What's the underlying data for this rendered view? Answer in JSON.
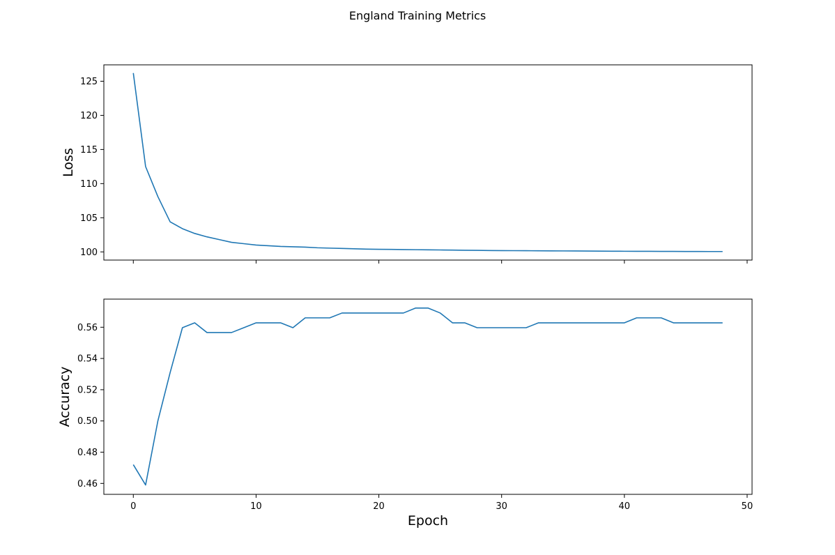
{
  "figure_title": "England Training Metrics",
  "x_axis_label": "Epoch",
  "line_color": "#1f77b4",
  "x_ticks": [
    0,
    10,
    20,
    30,
    40,
    50
  ],
  "chart_data": [
    {
      "type": "line",
      "ylabel": "Loss",
      "xlim": [
        -2.4,
        50.4
      ],
      "ylim": [
        98.8,
        127.4
      ],
      "y_ticks": [
        100,
        105,
        110,
        115,
        120,
        125
      ],
      "x_tick_labels_shown": false,
      "grid": false,
      "series": [
        {
          "x": [
            0,
            1,
            2,
            3,
            4,
            5,
            6,
            7,
            8,
            9,
            10,
            11,
            12,
            13,
            14,
            15,
            16,
            17,
            18,
            19,
            20,
            21,
            22,
            23,
            24,
            25,
            26,
            27,
            28,
            29,
            30,
            31,
            32,
            33,
            34,
            35,
            36,
            37,
            38,
            39,
            40,
            41,
            42,
            43,
            44,
            45,
            46,
            47,
            48
          ],
          "values": [
            126.2,
            112.5,
            108.1,
            104.4,
            103.4,
            102.7,
            102.2,
            101.8,
            101.4,
            101.2,
            101.0,
            100.9,
            100.8,
            100.75,
            100.7,
            100.6,
            100.55,
            100.5,
            100.45,
            100.4,
            100.38,
            100.36,
            100.34,
            100.32,
            100.3,
            100.28,
            100.26,
            100.24,
            100.22,
            100.2,
            100.19,
            100.18,
            100.17,
            100.16,
            100.15,
            100.14,
            100.13,
            100.12,
            100.11,
            100.1,
            100.09,
            100.08,
            100.08,
            100.07,
            100.07,
            100.06,
            100.06,
            100.05,
            100.05
          ]
        }
      ]
    },
    {
      "type": "line",
      "ylabel": "Accuracy",
      "xlim": [
        -2.4,
        50.4
      ],
      "ylim": [
        0.453,
        0.578
      ],
      "y_ticks": [
        0.46,
        0.48,
        0.5,
        0.52,
        0.54,
        0.56
      ],
      "x_tick_labels_shown": true,
      "grid": false,
      "series": [
        {
          "x": [
            0,
            1,
            2,
            3,
            4,
            5,
            6,
            7,
            8,
            9,
            10,
            11,
            12,
            13,
            14,
            15,
            16,
            17,
            18,
            19,
            20,
            21,
            22,
            23,
            24,
            25,
            26,
            27,
            28,
            29,
            30,
            31,
            32,
            33,
            34,
            35,
            36,
            37,
            38,
            39,
            40,
            41,
            42,
            43,
            44,
            45,
            46,
            47,
            48
          ],
          "values": [
            0.472,
            0.459,
            0.5,
            0.531,
            0.5597,
            0.5628,
            0.5566,
            0.5566,
            0.5566,
            0.5597,
            0.5628,
            0.5628,
            0.5628,
            0.5597,
            0.566,
            0.566,
            0.566,
            0.5691,
            0.5691,
            0.5691,
            0.5691,
            0.5691,
            0.5691,
            0.5723,
            0.5723,
            0.5691,
            0.5628,
            0.5628,
            0.5597,
            0.5597,
            0.5597,
            0.5597,
            0.5597,
            0.5628,
            0.5628,
            0.5628,
            0.5628,
            0.5628,
            0.5628,
            0.5628,
            0.5628,
            0.566,
            0.566,
            0.566,
            0.5628,
            0.5628,
            0.5628,
            0.5628,
            0.5628
          ]
        }
      ]
    }
  ]
}
